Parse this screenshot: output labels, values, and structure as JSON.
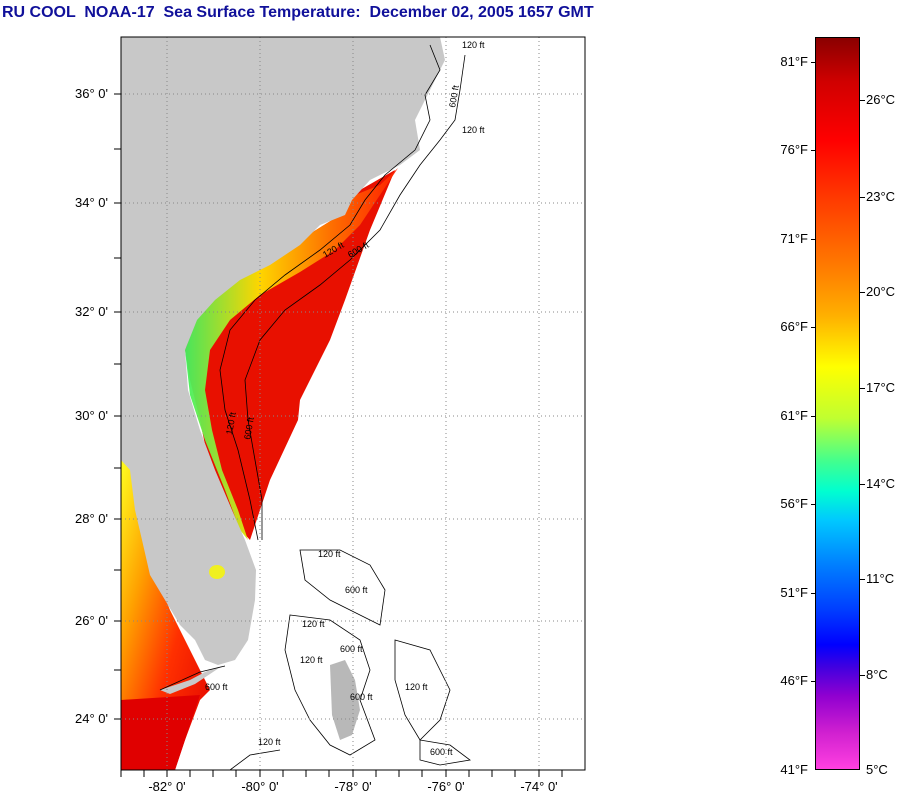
{
  "title": "RU COOL  NOAA-17  Sea Surface Temperature:  December 02, 2005 1657 GMT",
  "lat_labels": [
    "36° 0'",
    "34° 0'",
    "32° 0'",
    "30° 0'",
    "28° 0'",
    "26° 0'",
    "24° 0'"
  ],
  "lon_labels": [
    "-82° 0'",
    "-80° 0'",
    "-78° 0'",
    "-76° 0'",
    "-74° 0'"
  ],
  "contour_labels": [
    "120 ft",
    "600 ft",
    "120 ft",
    "120 ft",
    "600 ft",
    "120 ft",
    "600 ft",
    "120 ft",
    "600 ft",
    "120 ft",
    "600 ft",
    "600 ft",
    "120 ft",
    "120 ft",
    "600 ft",
    "600 ft",
    "120 ft"
  ],
  "colorbar": {
    "fahrenheit": [
      "81°F",
      "76°F",
      "71°F",
      "66°F",
      "61°F",
      "56°F",
      "51°F",
      "46°F",
      "41°F"
    ],
    "celsius": [
      "26°C",
      "23°C",
      "20°C",
      "17°C",
      "14°C",
      "11°C",
      "8°C",
      "5°C"
    ]
  }
}
